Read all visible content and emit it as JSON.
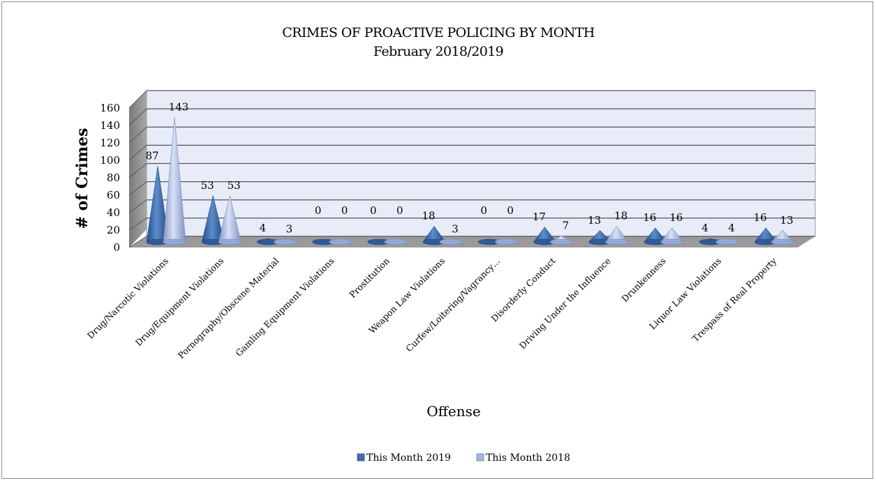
{
  "chart_data": {
    "type": "bar",
    "subtype": "3d-cone",
    "title": "CRIMES OF PROACTIVE POLICING BY MONTH",
    "subtitle": "February 2018/2019",
    "xlabel": "Offense",
    "ylabel": "# of Crimes",
    "ylim": [
      0,
      160
    ],
    "yticks": [
      0,
      20,
      40,
      60,
      80,
      100,
      120,
      140,
      160
    ],
    "grid": true,
    "legend_position": "bottom",
    "categories": [
      "Drug/Narcotic Violations",
      "Drug/Equipment Violations",
      "Pornography/Obscene Material",
      "Gamling Equipment Violations",
      "Prostitution",
      "Weapon Law Violations",
      "Curfew/Loitering/Vagrancy…",
      "Disorderly Conduct",
      "Driving Under the Influence",
      "Drunkenness",
      "Liquor Law Violations",
      "Trespass of Real Property"
    ],
    "series": [
      {
        "name": "This Month 2019",
        "color": "#3f6fae",
        "values": [
          87,
          53,
          4,
          0,
          0,
          18,
          0,
          17,
          13,
          16,
          4,
          16
        ]
      },
      {
        "name": "This Month 2018",
        "color": "#a4b6e0",
        "values": [
          143,
          53,
          3,
          0,
          0,
          3,
          0,
          7,
          18,
          16,
          4,
          13
        ]
      }
    ]
  }
}
